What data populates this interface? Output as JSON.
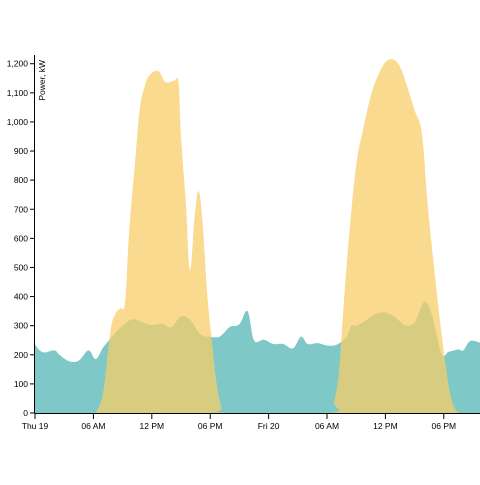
{
  "chart_data": {
    "type": "area",
    "title": "",
    "xlabel": "",
    "ylabel": "Power, kW",
    "ylim": [
      0,
      1230
    ],
    "xlim": [
      "Thu 19 00:00",
      "Fri 20 22:00"
    ],
    "grid": false,
    "legend": "none",
    "x_tick_labels": [
      "Thu 19",
      "06 AM",
      "12 PM",
      "06 PM",
      "Fri 20",
      "06 AM",
      "12 PM",
      "06 PM"
    ],
    "y_tick_labels": [
      "0",
      "100",
      "200",
      "300",
      "400",
      "500",
      "600",
      "700",
      "800",
      "900",
      "1,000",
      "1,100",
      "1,200"
    ],
    "series": [
      {
        "color": "#7ec8c8",
        "points": [
          [
            "Thu 19 00:00",
            235
          ],
          [
            "Thu 19 00:30",
            215
          ],
          [
            "Thu 19 01:00",
            208
          ],
          [
            "Thu 19 02:00",
            215
          ],
          [
            "Thu 19 02:30",
            200
          ],
          [
            "Thu 19 03:30",
            178
          ],
          [
            "Thu 19 04:30",
            180
          ],
          [
            "Thu 19 05:30",
            215
          ],
          [
            "Thu 19 06:15",
            185
          ],
          [
            "Thu 19 07:00",
            225
          ],
          [
            "Thu 19 08:00",
            265
          ],
          [
            "Thu 19 09:00",
            300
          ],
          [
            "Thu 19 10:00",
            322
          ],
          [
            "Thu 19 11:00",
            312
          ],
          [
            "Thu 19 12:00",
            302
          ],
          [
            "Thu 19 13:00",
            307
          ],
          [
            "Thu 19 14:00",
            295
          ],
          [
            "Thu 19 15:00",
            332
          ],
          [
            "Thu 19 16:00",
            318
          ],
          [
            "Thu 19 17:00",
            270
          ],
          [
            "Thu 19 18:00",
            262
          ],
          [
            "Thu 19 19:00",
            263
          ],
          [
            "Thu 19 20:00",
            295
          ],
          [
            "Thu 19 21:00",
            305
          ],
          [
            "Thu 19 21:50",
            350
          ],
          [
            "Thu 19 22:30",
            250
          ],
          [
            "Thu 19 23:30",
            252
          ],
          [
            "Fri 20 00:30",
            237
          ],
          [
            "Fri 20 01:30",
            237
          ],
          [
            "Fri 20 02:30",
            222
          ],
          [
            "Fri 20 03:20",
            262
          ],
          [
            "Fri 20 04:00",
            237
          ],
          [
            "Fri 20 05:00",
            240
          ],
          [
            "Fri 20 06:00",
            232
          ],
          [
            "Fri 20 07:00",
            235
          ],
          [
            "Fri 20 08:00",
            262
          ],
          [
            "Fri 20 08:30",
            300
          ],
          [
            "Fri 20 09:00",
            300
          ],
          [
            "Fri 20 10:00",
            318
          ],
          [
            "Fri 20 11:00",
            340
          ],
          [
            "Fri 20 12:00",
            345
          ],
          [
            "Fri 20 13:00",
            330
          ],
          [
            "Fri 20 14:00",
            302
          ],
          [
            "Fri 20 15:00",
            312
          ],
          [
            "Fri 20 16:00",
            382
          ],
          [
            "Fri 20 16:45",
            340
          ],
          [
            "Fri 20 17:45",
            205
          ],
          [
            "Fri 20 18:30",
            210
          ],
          [
            "Fri 20 19:30",
            218
          ],
          [
            "Fri 20 20:00",
            215
          ],
          [
            "Fri 20 20:45",
            248
          ],
          [
            "Fri 20 22:00",
            238
          ]
        ]
      },
      {
        "color": "#f7cd6a",
        "points": [
          [
            "Thu 19 06:15",
            0
          ],
          [
            "Thu 19 07:00",
            70
          ],
          [
            "Thu 19 07:45",
            280
          ],
          [
            "Thu 19 08:15",
            340
          ],
          [
            "Thu 19 08:45",
            360
          ],
          [
            "Thu 19 09:15",
            380
          ],
          [
            "Thu 19 09:40",
            620
          ],
          [
            "Thu 19 10:15",
            850
          ],
          [
            "Thu 19 10:45",
            1040
          ],
          [
            "Thu 19 11:15",
            1120
          ],
          [
            "Thu 19 11:45",
            1160
          ],
          [
            "Thu 19 12:40",
            1175
          ],
          [
            "Thu 19 13:15",
            1142
          ],
          [
            "Thu 19 13:40",
            1135
          ],
          [
            "Thu 19 14:20",
            1142
          ],
          [
            "Thu 19 14:45",
            1135
          ],
          [
            "Thu 19 15:00",
            950
          ],
          [
            "Thu 19 15:30",
            720
          ],
          [
            "Thu 19 15:55",
            490
          ],
          [
            "Thu 19 16:25",
            680
          ],
          [
            "Thu 19 16:50",
            762
          ],
          [
            "Thu 19 17:15",
            640
          ],
          [
            "Thu 19 17:40",
            420
          ],
          [
            "Thu 19 18:10",
            250
          ],
          [
            "Thu 19 18:40",
            100
          ],
          [
            "Thu 19 19:10",
            20
          ],
          [
            "Thu 19 19:40",
            0
          ],
          [
            "Fri 20 06:15",
            0
          ],
          [
            "Fri 20 06:45",
            40
          ],
          [
            "Fri 20 07:15",
            150
          ],
          [
            "Fri 20 07:40",
            350
          ],
          [
            "Fri 20 08:15",
            600
          ],
          [
            "Fri 20 09:00",
            850
          ],
          [
            "Fri 20 09:45",
            980
          ],
          [
            "Fri 20 10:30",
            1090
          ],
          [
            "Fri 20 11:15",
            1160
          ],
          [
            "Fri 20 12:00",
            1205
          ],
          [
            "Fri 20 12:45",
            1215
          ],
          [
            "Fri 20 13:30",
            1190
          ],
          [
            "Fri 20 14:15",
            1120
          ],
          [
            "Fri 20 15:00",
            1040
          ],
          [
            "Fri 20 15:45",
            960
          ],
          [
            "Fri 20 16:20",
            720
          ],
          [
            "Fri 20 17:00",
            500
          ],
          [
            "Fri 20 17:40",
            300
          ],
          [
            "Fri 20 18:15",
            150
          ],
          [
            "Fri 20 18:50",
            40
          ],
          [
            "Fri 20 19:30",
            0
          ]
        ]
      }
    ]
  }
}
